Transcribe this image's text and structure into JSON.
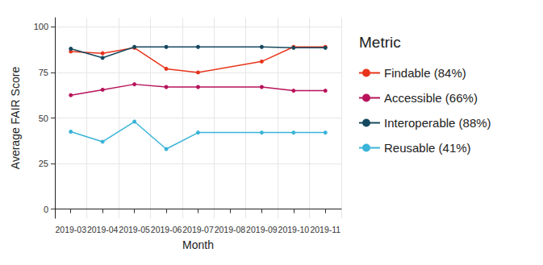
{
  "chart_data": {
    "type": "line",
    "x_label": "Month",
    "y_label": "Average FAIR Score",
    "legend_title": "Metric",
    "legend": "right",
    "grid": true,
    "marker": "circle",
    "categories": [
      "2019-03",
      "2019-04",
      "2019-05",
      "2019-06",
      "2019-07",
      "2019-08",
      "2019-09",
      "2019-10",
      "2019-11"
    ],
    "ylim": [
      -5,
      105
    ],
    "yticks": [
      0,
      25,
      50,
      75,
      100
    ],
    "series": [
      {
        "name": "Findable (84%)",
        "color": "#e8341c",
        "values": [
          86.5,
          85.5,
          88.5,
          77,
          75,
          null,
          81,
          89,
          89
        ]
      },
      {
        "name": "Accessible (66%)",
        "color": "#b8125a",
        "values": [
          62.5,
          65.5,
          68.5,
          67,
          67,
          null,
          67,
          65,
          65
        ]
      },
      {
        "name": "Interoperable (88%)",
        "color": "#15495f",
        "values": [
          88,
          83,
          89,
          89,
          89,
          null,
          89,
          88.5,
          88.5
        ]
      },
      {
        "name": "Reusable (41%)",
        "color": "#3ab4d8",
        "values": [
          42.5,
          37,
          48,
          33,
          42,
          null,
          42,
          42,
          42
        ]
      }
    ]
  }
}
